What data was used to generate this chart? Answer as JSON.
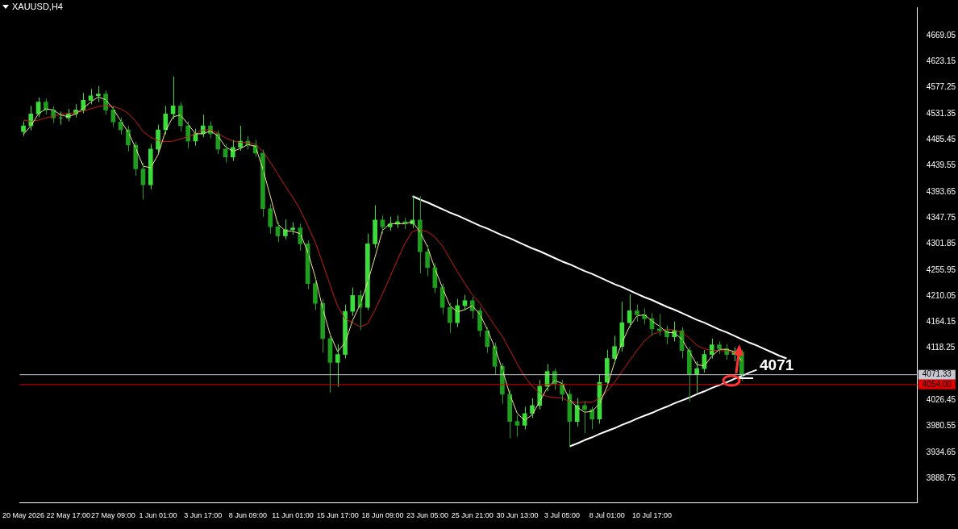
{
  "chart_data": {
    "type": "candlestick",
    "title": "XAUUSD,H4",
    "legend": false,
    "grid": false,
    "colors": [
      "#3cdc3c",
      "#3cdc3c",
      "#3cdc3c",
      "#1e9e1e",
      "#1e9e1e",
      "#3cdc3c",
      "#3cdc3c",
      "#3cdc3c",
      "#3cdc3c",
      "#3cdc3c",
      "#3cdc3c",
      "#1e9e1e",
      "#1e9e1e",
      "#1e9e1e",
      "#1e9e1e",
      "#1e9e1e",
      "#1e9e1e",
      "#3cdc3c",
      "#3cdc3c",
      "#3cdc3c",
      "#3cdc3c",
      "#1e9e1e",
      "#1e9e1e",
      "#3cdc3c",
      "#3cdc3c",
      "#1e9e1e",
      "#1e9e1e",
      "#1e9e1e",
      "#3cdc3c",
      "#3cdc3c",
      "#1e9e1e",
      "#1e9e1e",
      "#1e9e1e",
      "#1e9e1e",
      "#1e9e1e",
      "#3cdc3c",
      "#3cdc3c",
      "#1e9e1e",
      "#1e9e1e",
      "#1e9e1e",
      "#1e9e1e",
      "#1e9e1e",
      "#3cdc3c",
      "#3cdc3c",
      "#3cdc3c",
      "#1e9e1e",
      "#3cdc3c",
      "#3cdc3c",
      "#1e9e1e",
      "#3cdc3c",
      "#3cdc3c",
      "#1e9e1e",
      "#3cdc3c",
      "#1e9e1e",
      "#1e9e1e",
      "#1e9e1e",
      "#1e9e1e",
      "#1e9e1e",
      "#3cdc3c",
      "#3cdc3c",
      "#1e9e1e",
      "#1e9e1e",
      "#1e9e1e",
      "#1e9e1e",
      "#1e9e1e",
      "#1e9e1e",
      "#1e9e1e",
      "#3cdc3c",
      "#3cdc3c",
      "#3cdc3c",
      "#3cdc3c",
      "#1e9e1e",
      "#1e9e1e",
      "#1e9e1e",
      "#3cdc3c",
      "#1e9e1e",
      "#1e9e1e",
      "#3cdc3c",
      "#3cdc3c",
      "#3cdc3c",
      "#3cdc3c",
      "#3cdc3c",
      "#1e9e1e",
      "#1e9e1e",
      "#1e9e1e",
      "#1e9e1e",
      "#1e9e1e",
      "#3cdc3c",
      "#1e9e1e",
      "#1e9e1e",
      "#3cdc3c",
      "#3cdc3c",
      "#3cdc3c",
      "#1e9e1e",
      "#1e9e1e",
      "#3cdc3c",
      "#1e9e1e",
      null,
      null,
      null,
      null,
      null,
      null,
      null,
      null,
      null,
      null,
      null,
      null,
      null,
      null,
      null,
      null,
      null,
      null,
      null,
      null,
      null,
      null,
      null
    ],
    "categories": [
      "20 May 2026",
      null,
      null,
      null,
      null,
      null,
      "22 May 17:00",
      null,
      null,
      null,
      null,
      null,
      "27 May 09:00",
      null,
      null,
      null,
      null,
      null,
      "1 Jun 01:00",
      null,
      null,
      null,
      null,
      null,
      "3 Jun 17:00",
      null,
      null,
      null,
      null,
      null,
      "8 Jun 09:00",
      null,
      null,
      null,
      null,
      null,
      "11 Jun 01:00",
      null,
      null,
      null,
      null,
      null,
      "15 Jun 17:00",
      null,
      null,
      null,
      null,
      null,
      "18 Jun 09:00",
      null,
      null,
      null,
      null,
      null,
      "23 Jun 05:00",
      null,
      null,
      null,
      null,
      null,
      "25 Jun 21:00",
      null,
      null,
      null,
      null,
      null,
      "30 Jun 13:00",
      null,
      null,
      null,
      null,
      null,
      "3 Jul 05:00",
      null,
      null,
      null,
      null,
      null,
      "8 Jul 01:00",
      null,
      null,
      null,
      null,
      null,
      "10 Jul 17:00",
      null,
      null,
      null,
      null,
      null,
      null,
      null,
      null,
      null,
      null,
      null,
      null,
      null,
      null,
      null,
      null,
      null,
      null,
      null,
      null,
      null,
      null,
      null,
      null,
      null,
      null,
      null,
      null,
      null,
      null,
      null,
      null,
      null,
      null,
      null
    ],
    "ohlc": [
      [
        4500,
        4518,
        4492,
        4510
      ],
      [
        4510,
        4545,
        4502,
        4531
      ],
      [
        4531,
        4560,
        4525,
        4552
      ],
      [
        4552,
        4558,
        4530,
        4538
      ],
      [
        4538,
        4545,
        4515,
        4524
      ],
      [
        4524,
        4535,
        4512,
        4524
      ],
      [
        4524,
        4540,
        4518,
        4531
      ],
      [
        4531,
        4548,
        4525,
        4538
      ],
      [
        4538,
        4568,
        4532,
        4555
      ],
      [
        4555,
        4575,
        4548,
        4563
      ],
      [
        4563,
        4580,
        4552,
        4566
      ],
      [
        4566,
        4572,
        4530,
        4538
      ],
      [
        4538,
        4545,
        4508,
        4517
      ],
      [
        4517,
        4525,
        4495,
        4503
      ],
      [
        4503,
        4510,
        4465,
        4476
      ],
      [
        4476,
        4482,
        4422,
        4434
      ],
      [
        4434,
        4445,
        4380,
        4406
      ],
      [
        4406,
        4478,
        4398,
        4469
      ],
      [
        4469,
        4512,
        4462,
        4503
      ],
      [
        4503,
        4545,
        4495,
        4531
      ],
      [
        4531,
        4597,
        4522,
        4545
      ],
      [
        4545,
        4552,
        4500,
        4510
      ],
      [
        4510,
        4518,
        4470,
        4483
      ],
      [
        4483,
        4505,
        4475,
        4496
      ],
      [
        4496,
        4530,
        4490,
        4510
      ],
      [
        4510,
        4518,
        4488,
        4496
      ],
      [
        4496,
        4502,
        4460,
        4469
      ],
      [
        4469,
        4478,
        4445,
        4455
      ],
      [
        4455,
        4485,
        4448,
        4472
      ],
      [
        4472,
        4510,
        4466,
        4483
      ],
      [
        4483,
        4492,
        4468,
        4476
      ],
      [
        4476,
        4485,
        4455,
        4462
      ],
      [
        4462,
        4468,
        4350,
        4364
      ],
      [
        4364,
        4372,
        4320,
        4332
      ],
      [
        4332,
        4340,
        4305,
        4316
      ],
      [
        4316,
        4345,
        4310,
        4327
      ],
      [
        4327,
        4340,
        4318,
        4330
      ],
      [
        4330,
        4338,
        4290,
        4302
      ],
      [
        4302,
        4308,
        4222,
        4232
      ],
      [
        4232,
        4240,
        4185,
        4197
      ],
      [
        4197,
        4205,
        4110,
        4135
      ],
      [
        4135,
        4142,
        4040,
        4093
      ],
      [
        4093,
        4125,
        4050,
        4107
      ],
      [
        4107,
        4195,
        4100,
        4183
      ],
      [
        4183,
        4225,
        4175,
        4211
      ],
      [
        4211,
        4220,
        4150,
        4190
      ],
      [
        4190,
        4320,
        4185,
        4302
      ],
      [
        4302,
        4370,
        4295,
        4344
      ],
      [
        4344,
        4352,
        4320,
        4332
      ],
      [
        4332,
        4350,
        4325,
        4337
      ],
      [
        4337,
        4352,
        4330,
        4341
      ],
      [
        4341,
        4348,
        4328,
        4337
      ],
      [
        4337,
        4386,
        4330,
        4344
      ],
      [
        4344,
        4386,
        4250,
        4288
      ],
      [
        4288,
        4300,
        4245,
        4260
      ],
      [
        4260,
        4268,
        4215,
        4225
      ],
      [
        4225,
        4232,
        4178,
        4190
      ],
      [
        4190,
        4198,
        4145,
        4163
      ],
      [
        4163,
        4205,
        4155,
        4193
      ],
      [
        4193,
        4212,
        4185,
        4202
      ],
      [
        4202,
        4208,
        4170,
        4184
      ],
      [
        4184,
        4190,
        4138,
        4149
      ],
      [
        4149,
        4155,
        4110,
        4121
      ],
      [
        4121,
        4128,
        4072,
        4086
      ],
      [
        4086,
        4092,
        4020,
        4037
      ],
      [
        4037,
        4045,
        3959,
        3989
      ],
      [
        3989,
        4000,
        3962,
        3982
      ],
      [
        3982,
        4015,
        3975,
        4003
      ],
      [
        4003,
        4030,
        3995,
        4017
      ],
      [
        4017,
        4062,
        4010,
        4051
      ],
      [
        4051,
        4090,
        4042,
        4077
      ],
      [
        4077,
        4082,
        4045,
        4055
      ],
      [
        4055,
        4062,
        4025,
        4037
      ],
      [
        4037,
        4045,
        3944,
        3989
      ],
      [
        3989,
        4030,
        3980,
        4017
      ],
      [
        4017,
        4025,
        3968,
        4010
      ],
      [
        4010,
        4015,
        3975,
        3993
      ],
      [
        3993,
        4072,
        3985,
        4058
      ],
      [
        4058,
        4115,
        4050,
        4100
      ],
      [
        4100,
        4140,
        4092,
        4121
      ],
      [
        4121,
        4200,
        4112,
        4163
      ],
      [
        4163,
        4213,
        4155,
        4184
      ],
      [
        4184,
        4195,
        4165,
        4177
      ],
      [
        4177,
        4188,
        4160,
        4170
      ],
      [
        4170,
        4180,
        4140,
        4152
      ],
      [
        4152,
        4178,
        4140,
        4149
      ],
      [
        4149,
        4158,
        4125,
        4138
      ],
      [
        4138,
        4165,
        4130,
        4149
      ],
      [
        4149,
        4155,
        4100,
        4114
      ],
      [
        4114,
        4120,
        4024,
        4072
      ],
      [
        4072,
        4095,
        4040,
        4082
      ],
      [
        4082,
        4115,
        4075,
        4107
      ],
      [
        4107,
        4135,
        4100,
        4124
      ],
      [
        4124,
        4130,
        4108,
        4117
      ],
      [
        4117,
        4125,
        4098,
        4107
      ],
      [
        4107,
        4120,
        4095,
        4111
      ],
      [
        4111,
        4115,
        4060,
        4071
      ],
      null,
      null,
      null,
      null,
      null,
      null,
      null,
      null,
      null,
      null,
      null,
      null,
      null,
      null,
      null,
      null,
      null,
      null,
      null,
      null,
      null,
      null,
      null
    ],
    "series": [
      {
        "type": "line",
        "color": "#f0e68c",
        "values": [
          4495,
          4510,
          4531,
          4540,
          4538,
          4529,
          4526,
          4531,
          4541,
          4552,
          4561,
          4556,
          4540,
          4519,
          4499,
          4471,
          4439,
          4436,
          4459,
          4501,
          4526,
          4529,
          4513,
          4496,
          4496,
          4501,
          4492,
          4473,
          4465,
          4470,
          4477,
          4474,
          4434,
          4386,
          4337,
          4325,
          4324,
          4320,
          4288,
          4244,
          4188,
          4142,
          4112,
          4128,
          4167,
          4195,
          4234,
          4279,
          4326,
          4338,
          4337,
          4338,
          4341,
          4323,
          4297,
          4258,
          4225,
          4193,
          4182,
          4186,
          4193,
          4178,
          4151,
          4119,
          4081,
          4037,
          4003,
          3991,
          4001,
          4024,
          4048,
          4061,
          4056,
          4027,
          4014,
          4005,
          4007,
          4020,
          4050,
          4093,
          4128,
          4156,
          4175,
          4177,
          4166,
          4157,
          4146,
          4145,
          4134,
          4112,
          4089,
          4087,
          4104,
          4116,
          4116,
          4112,
          4096,
          null,
          null,
          null,
          null,
          null,
          null,
          null,
          null,
          null,
          null,
          null,
          null,
          null,
          null,
          null,
          null,
          null,
          null,
          null,
          null,
          null,
          null,
          null
        ]
      },
      {
        "type": "line",
        "color": "#d01818",
        "values": [
          4520,
          4518,
          4520,
          4524,
          4527,
          4530,
          4532,
          4533,
          4536,
          4540,
          4544,
          4546,
          4544,
          4540,
          4532,
          4518,
          4500,
          4490,
          4484,
          4482,
          4483,
          4487,
          4491,
          4496,
          4503,
          4503,
          4497,
          4489,
          4483,
          4481,
          4480,
          4478,
          4465,
          4446,
          4425,
          4404,
          4384,
          4362,
          4334,
          4305,
          4268,
          4229,
          4192,
          4170,
          4163,
          4156,
          4161,
          4186,
          4214,
          4244,
          4274,
          4303,
          4324,
          4327,
          4323,
          4314,
          4298,
          4276,
          4253,
          4232,
          4212,
          4197,
          4178,
          4158,
          4139,
          4115,
          4090,
          4068,
          4051,
          4039,
          4033,
          4031,
          4030,
          4024,
          4022,
          4023,
          4023,
          4030,
          4042,
          4058,
          4077,
          4096,
          4114,
          4131,
          4142,
          4147,
          4152,
          4150,
          4146,
          4136,
          4123,
          4117,
          4114,
          4114,
          4113,
          4110,
          4105,
          null,
          null,
          null,
          null,
          null,
          null,
          null,
          null,
          null,
          null,
          null,
          null,
          null,
          null,
          null,
          null,
          null,
          null,
          null,
          null,
          null,
          null,
          null
        ]
      },
      {
        "type": "line",
        "color": "#ffffff",
        "values": [
          null,
          null,
          null,
          null,
          null,
          null,
          null,
          null,
          null,
          null,
          null,
          null,
          null,
          null,
          null,
          null,
          null,
          null,
          null,
          null,
          null,
          null,
          null,
          null,
          null,
          null,
          null,
          null,
          null,
          null,
          null,
          null,
          null,
          null,
          null,
          null,
          null,
          null,
          null,
          null,
          null,
          null,
          null,
          null,
          null,
          null,
          null,
          null,
          null,
          null,
          null,
          null,
          4386,
          4380,
          4375,
          4369,
          4363,
          4357,
          4352,
          4346,
          4340,
          4334,
          4329,
          4323,
          4317,
          4312,
          4306,
          4300,
          4294,
          4289,
          4283,
          4277,
          4271,
          4266,
          4260,
          4254,
          4249,
          4243,
          4237,
          4231,
          4226,
          4220,
          4214,
          4208,
          4203,
          4197,
          4191,
          4186,
          4180,
          4174,
          4168,
          4163,
          4157,
          4151,
          4146,
          4140,
          4134,
          4128,
          4123,
          4117,
          4111,
          4105,
          4100,
          null,
          null,
          null,
          null,
          null,
          null,
          null,
          null,
          null,
          null,
          null,
          null,
          null,
          null,
          null,
          null,
          null
        ]
      },
      {
        "type": "line",
        "color": "#ffffff",
        "values": [
          null,
          null,
          null,
          null,
          null,
          null,
          null,
          null,
          null,
          null,
          null,
          null,
          null,
          null,
          null,
          null,
          null,
          null,
          null,
          null,
          null,
          null,
          null,
          null,
          null,
          null,
          null,
          null,
          null,
          null,
          null,
          null,
          null,
          null,
          null,
          null,
          null,
          null,
          null,
          null,
          null,
          null,
          null,
          null,
          null,
          null,
          null,
          null,
          null,
          null,
          null,
          null,
          null,
          null,
          null,
          null,
          null,
          null,
          null,
          null,
          null,
          null,
          null,
          null,
          null,
          null,
          null,
          null,
          null,
          null,
          null,
          null,
          null,
          3945,
          3950,
          3956,
          3961,
          3967,
          3972,
          3977,
          3983,
          3988,
          3994,
          3999,
          4004,
          4010,
          4015,
          4021,
          4026,
          4031,
          4037,
          4042,
          4048,
          4053,
          4058,
          4064,
          4069,
          4075,
          4080,
          null,
          null,
          null,
          null,
          null,
          null,
          null,
          null,
          null,
          null,
          null,
          null,
          null,
          null,
          null,
          null,
          null,
          null,
          null,
          null,
          null
        ]
      }
    ],
    "ylim": [
      3846,
      4719
    ],
    "yticks": [
      3888.75,
      3934.65,
      3980.55,
      4026.45,
      4118.25,
      4164.15,
      4210.05,
      4255.95,
      4301.85,
      4347.75,
      4393.65,
      4439.55,
      4485.45,
      4531.35,
      4577.25,
      4623.15,
      4669.05
    ],
    "ref_lines": [
      {
        "axis": "y",
        "value": 4071.33,
        "label": "4071.33",
        "color": "#c8c8d2"
      },
      {
        "axis": "y",
        "value": 4054,
        "label": "4054.00",
        "color": "#e00000"
      }
    ],
    "annotations": [
      {
        "text": "4071",
        "y": 4071
      }
    ]
  }
}
